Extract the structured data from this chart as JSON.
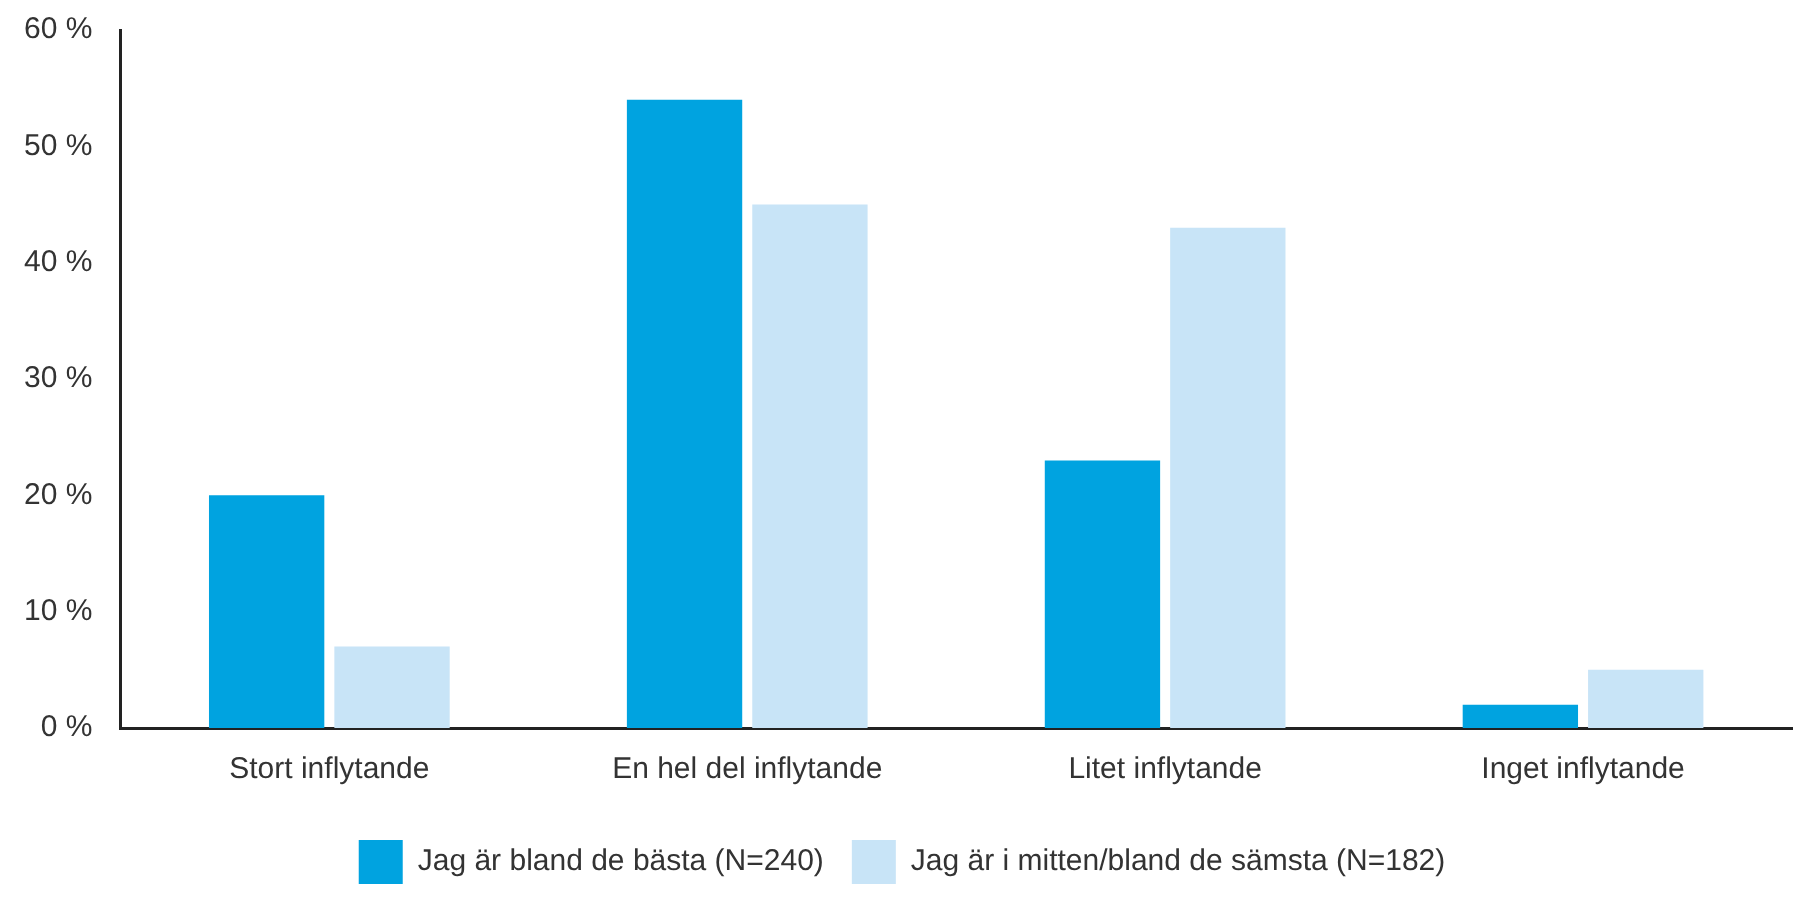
{
  "chart_data": {
    "type": "bar",
    "categories": [
      "Stort inflytande",
      "En hel del inflytande",
      "Litet inflytande",
      "Inget inflytande"
    ],
    "series": [
      {
        "name": "Jag är bland de bästa (N=240)",
        "color": "#00a3e0",
        "values": [
          20,
          54,
          23,
          2
        ]
      },
      {
        "name": "Jag är i mitten/bland de sämsta (N=182)",
        "color": "#c8e4f7",
        "values": [
          7,
          45,
          43,
          5
        ]
      }
    ],
    "ylim": [
      0,
      60
    ],
    "yticks": [
      {
        "value": 0,
        "label": "0 %"
      },
      {
        "value": 10,
        "label": "10 %"
      },
      {
        "value": 20,
        "label": "20 %"
      },
      {
        "value": 30,
        "label": "30 %"
      },
      {
        "value": 40,
        "label": "40 %"
      },
      {
        "value": 50,
        "label": "50 %"
      },
      {
        "value": 60,
        "label": "60 %"
      }
    ],
    "grid": false,
    "legend": "bottom"
  }
}
